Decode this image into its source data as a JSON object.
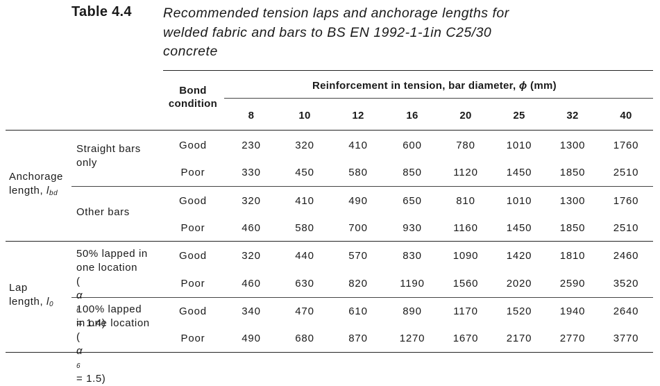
{
  "caption": {
    "label": "Table 4.4",
    "title_lines": [
      "Recommended tension laps and anchorage lengths for",
      "welded fabric and bars to BS EN 1992-1-1in C25/30",
      "concrete"
    ]
  },
  "header": {
    "bond_condition_line1": "Bond",
    "bond_condition_line2": "condition",
    "reinforcement_label_pre": "Reinforcement in tension, bar diameter,",
    "phi_symbol": "ϕ",
    "reinforcement_unit": "(mm)",
    "diameters": [
      "8",
      "10",
      "12",
      "16",
      "20",
      "25",
      "32",
      "40"
    ]
  },
  "groups": [
    {
      "label_line1": "Anchorage",
      "label_line2": "length,",
      "symbol": "l",
      "symbol_sub": "bd",
      "subgroups": [
        {
          "label_lines": [
            "Straight bars",
            "only"
          ],
          "rows": [
            {
              "bond": "Good",
              "values": [
                "230",
                "320",
                "410",
                "600",
                "780",
                "1010",
                "1300",
                "1760"
              ]
            },
            {
              "bond": "Poor",
              "values": [
                "330",
                "450",
                "580",
                "850",
                "1120",
                "1450",
                "1850",
                "2510"
              ]
            }
          ]
        },
        {
          "label_lines": [
            "Other bars"
          ],
          "rows": [
            {
              "bond": "Good",
              "values": [
                "320",
                "410",
                "490",
                "650",
                "810",
                "1010",
                "1300",
                "1760"
              ]
            },
            {
              "bond": "Poor",
              "values": [
                "460",
                "580",
                "700",
                "930",
                "1160",
                "1450",
                "1850",
                "2510"
              ]
            }
          ]
        }
      ]
    },
    {
      "label_line1": "Lap",
      "label_line2": "length,",
      "symbol": "l",
      "symbol_sub": "0",
      "subgroups": [
        {
          "label_lines": [
            "50% lapped in",
            "one location"
          ],
          "alpha_symbol": "α",
          "alpha_sub": "6",
          "alpha_value": "= 1.4)",
          "rows": [
            {
              "bond": "Good",
              "values": [
                "320",
                "440",
                "570",
                "830",
                "1090",
                "1420",
                "1810",
                "2460"
              ]
            },
            {
              "bond": "Poor",
              "values": [
                "460",
                "630",
                "820",
                "1190",
                "1560",
                "2020",
                "2590",
                "3520"
              ]
            }
          ]
        },
        {
          "label_lines": [
            "100% lapped",
            "in one location"
          ],
          "alpha_symbol": "α",
          "alpha_sub": "6",
          "alpha_value": "= 1.5)",
          "rows": [
            {
              "bond": "Good",
              "values": [
                "340",
                "470",
                "610",
                "890",
                "1170",
                "1520",
                "1940",
                "2640"
              ]
            },
            {
              "bond": "Poor",
              "values": [
                "490",
                "680",
                "870",
                "1270",
                "1670",
                "2170",
                "2770",
                "3770"
              ]
            }
          ]
        }
      ]
    }
  ]
}
